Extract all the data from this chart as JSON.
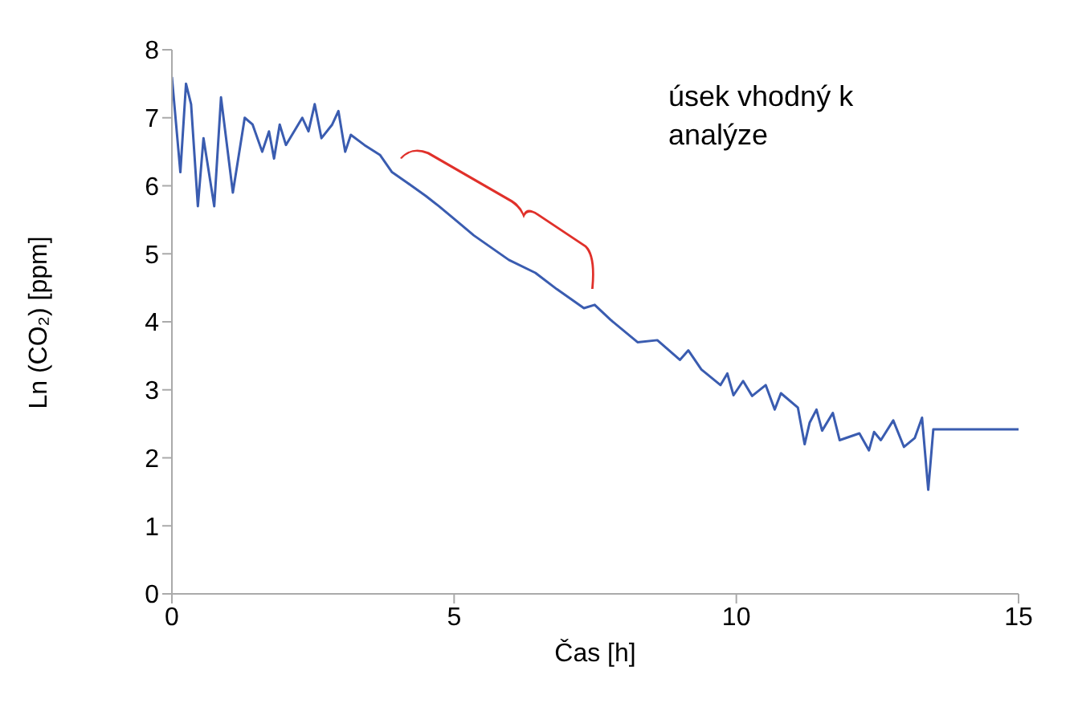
{
  "chart_data": {
    "type": "line",
    "xlabel": "Čas [h]",
    "ylabel": "Ln (CO₂) [ppm]",
    "xlim": [
      0,
      15
    ],
    "xticks": [
      0,
      5,
      10,
      15
    ],
    "ylim": [
      0,
      8
    ],
    "yticks": [
      0,
      1,
      2,
      3,
      4,
      5,
      6,
      7,
      8
    ],
    "grid": false,
    "legend": false,
    "marker": "none",
    "annotations": [
      "úsek vhodný k analýze"
    ],
    "series": [
      {
        "color": "#3a5cb0",
        "x": [
          0,
          0.15,
          0.25,
          0.34,
          0.46,
          0.56,
          0.75,
          0.87,
          1.08,
          1.29,
          1.43,
          1.6,
          1.72,
          1.81,
          1.91,
          2.02,
          2.31,
          2.42,
          2.53,
          2.65,
          2.84,
          2.95,
          3.07,
          3.17,
          3.41,
          3.69,
          3.9,
          4.16,
          4.5,
          4.73,
          5.02,
          5.35,
          5.97,
          6.44,
          6.82,
          7.3,
          7.49,
          7.77,
          8.25,
          8.6,
          9.0,
          9.15,
          9.38,
          9.72,
          9.84,
          9.95,
          10.12,
          10.28,
          10.52,
          10.68,
          10.79,
          11.09,
          11.21,
          11.3,
          11.42,
          11.52,
          11.71,
          11.83,
          12.18,
          12.35,
          12.44,
          12.56,
          12.78,
          12.97,
          13.16,
          13.29,
          13.4,
          13.49,
          15
        ],
        "values": [
          7.6,
          6.2,
          7.5,
          7.2,
          5.7,
          6.7,
          5.7,
          7.3,
          5.9,
          7.0,
          6.9,
          6.5,
          6.8,
          6.4,
          6.9,
          6.6,
          7.0,
          6.8,
          7.2,
          6.7,
          6.9,
          7.1,
          6.5,
          6.75,
          6.6,
          6.45,
          6.2,
          6.05,
          5.85,
          5.7,
          5.5,
          5.27,
          4.91,
          4.72,
          4.48,
          4.2,
          4.25,
          4.03,
          3.7,
          3.73,
          3.44,
          3.58,
          3.3,
          3.07,
          3.24,
          2.92,
          3.13,
          2.91,
          3.07,
          2.71,
          2.95,
          2.74,
          2.2,
          2.52,
          2.71,
          2.4,
          2.66,
          2.26,
          2.36,
          2.11,
          2.38,
          2.26,
          2.55,
          2.16,
          2.29,
          2.59,
          1.53,
          2.42,
          2.42
        ]
      }
    ]
  }
}
